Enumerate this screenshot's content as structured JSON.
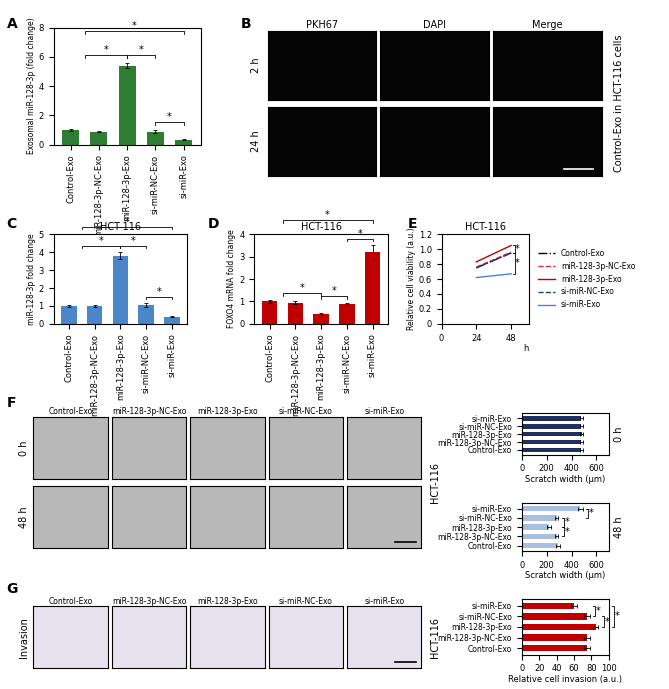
{
  "chart_data": [
    {
      "letter": "A",
      "type": "bar",
      "y_label": "Exosomal miR-128-3p (fold change)",
      "categories": [
        "Control-Exo",
        "miR-128-3p-NC-Exo",
        "miR-128-3p-Exo",
        "si-miR-NC-Exo",
        "si-miR-Exo"
      ],
      "values": [
        1.0,
        0.9,
        5.4,
        0.9,
        0.35
      ],
      "errors": [
        0.05,
        0.03,
        0.15,
        0.1,
        0.02
      ],
      "color": "#2e7d32",
      "ylim": [
        0,
        8
      ],
      "yticks": [
        0,
        2,
        4,
        6,
        8
      ],
      "significance": [
        {
          "from": [
            0,
            1
          ],
          "to": [
            2
          ],
          "label": "*"
        },
        {
          "from": [
            2
          ],
          "to": [
            3
          ],
          "label": "*"
        },
        {
          "from": [
            3
          ],
          "to": [
            4
          ],
          "label": "*"
        },
        {
          "from": [
            0,
            1
          ],
          "to": [
            4
          ],
          "label": "*"
        }
      ]
    },
    {
      "letter": "C",
      "type": "bar",
      "title": "HCT-116",
      "y_label": "miR-128-3p fold change",
      "categories": [
        "Control-Exo",
        "miR-128-3p-NC-Exo",
        "miR-128-3p-Exo",
        "si-miR-NC-Exo",
        "si-miR-Exo"
      ],
      "values": [
        1.0,
        1.0,
        3.8,
        1.05,
        0.4
      ],
      "errors": [
        0.04,
        0.04,
        0.2,
        0.1,
        0.03
      ],
      "color": "#4a86c8",
      "ylim": [
        0,
        5
      ],
      "yticks": [
        0,
        1,
        2,
        3,
        4,
        5
      ],
      "significance": [
        {
          "from": [
            0,
            1
          ],
          "to": [
            2
          ],
          "label": "*"
        },
        {
          "from": [
            2
          ],
          "to": [
            3
          ],
          "label": "*"
        },
        {
          "from": [
            3
          ],
          "to": [
            4
          ],
          "label": "*"
        },
        {
          "from": [
            0,
            1
          ],
          "to": [
            4
          ],
          "label": "*"
        }
      ]
    },
    {
      "letter": "D",
      "type": "bar",
      "title": "HCT-116",
      "y_label": "FOXO4 mRNA fold change",
      "categories": [
        "Control-Exo",
        "miR-128-3p-NC-Exo",
        "miR-128-3p-Exo",
        "si-miR-NC-Exo",
        "si-miR-Exo"
      ],
      "values": [
        1.0,
        0.95,
        0.45,
        0.9,
        3.2
      ],
      "errors": [
        0.08,
        0.05,
        0.04,
        0.05,
        0.3
      ],
      "color": "#c00000",
      "ylim": [
        0,
        4
      ],
      "yticks": [
        0,
        1,
        2,
        3,
        4
      ],
      "significance": [
        {
          "from": [
            0,
            1
          ],
          "to": [
            2
          ],
          "label": "*"
        },
        {
          "from": [
            2
          ],
          "to": [
            3
          ],
          "label": "*"
        },
        {
          "from": [
            3
          ],
          "to": [
            4
          ],
          "label": "*"
        },
        {
          "from": [
            0,
            1
          ],
          "to": [
            4
          ],
          "label": "*"
        }
      ]
    },
    {
      "letter": "E",
      "type": "line",
      "title": "HCT-116",
      "y_label": "Relative cell viability (a.u.)",
      "x_label": "h",
      "x": [
        24,
        48
      ],
      "series": [
        {
          "name": "Control-Exo",
          "color": "#000000",
          "line_style": "dashdot",
          "values": [
            0.75,
            0.95
          ]
        },
        {
          "name": "miR-128-3p-NC-Exo",
          "color": "#e03030",
          "line_style": "dashed",
          "values": [
            0.76,
            0.96
          ]
        },
        {
          "name": "miR-128-3p-Exo",
          "color": "#c00000",
          "line_style": "solid",
          "values": [
            0.83,
            1.05
          ]
        },
        {
          "name": "si-miR-NC-Exo",
          "color": "#1f3f7f",
          "line_style": "dashed",
          "values": [
            0.75,
            0.95
          ]
        },
        {
          "name": "si-miR-Exo",
          "color": "#4a86c8",
          "line_style": "solid",
          "values": [
            0.62,
            0.67
          ]
        }
      ],
      "xlim": [
        0,
        60
      ],
      "xticks": [
        0,
        24,
        48
      ],
      "ylim": [
        0,
        1.2
      ],
      "yticks": [
        0,
        0.2,
        0.4,
        0.6,
        0.8,
        1.0,
        1.2
      ],
      "legend": "right",
      "significance": [
        {
          "from": [
            2
          ],
          "to": [
            3
          ],
          "label": "*"
        },
        {
          "from": [
            3
          ],
          "to": [
            4
          ],
          "label": "*"
        }
      ]
    },
    {
      "letter": "F",
      "type": "bar",
      "orientation": "horizontal",
      "side_label": "0 h",
      "x_label": "Scratch width (μm)",
      "categories": [
        "Control-Exo",
        "miR-128-3p-NC-Exo",
        "miR-128-3p-Exo",
        "si-miR-NC-Exo",
        "si-miR-Exo"
      ],
      "values": [
        480,
        480,
        482,
        480,
        478
      ],
      "errors": [
        10,
        12,
        10,
        10,
        12
      ],
      "color": "#1f2f5f",
      "xlim": [
        0,
        700
      ],
      "xticks": [
        0,
        200,
        400,
        600
      ],
      "significance": []
    },
    {
      "letter": "F",
      "type": "bar",
      "orientation": "horizontal",
      "side_label": "48 h",
      "x_label": "Scratch width (μm)",
      "categories": [
        "Control-Exo",
        "miR-128-3p-NC-Exo",
        "miR-128-3p-Exo",
        "si-miR-NC-Exo",
        "si-miR-Exo"
      ],
      "values": [
        290,
        280,
        220,
        280,
        470
      ],
      "errors": [
        15,
        15,
        15,
        15,
        20
      ],
      "color": "#a9bfe0",
      "xlim": [
        0,
        700
      ],
      "xticks": [
        0,
        200,
        400,
        600
      ],
      "significance": [
        {
          "from": [
            4
          ],
          "to": [
            3
          ],
          "label": "*"
        },
        {
          "from": [
            3
          ],
          "to": [
            2
          ],
          "label": "*"
        },
        {
          "from": [
            2
          ],
          "to": [
            1
          ],
          "label": "*"
        }
      ]
    },
    {
      "letter": "G",
      "type": "bar",
      "orientation": "horizontal",
      "x_label": "Relative cell invasion (a.u.)",
      "categories": [
        "Control-Exo",
        "miR-128-3p-NC-Exo",
        "miR-128-3p-Exo",
        "si-miR-NC-Exo",
        "si-miR-Exo"
      ],
      "values": [
        75,
        75,
        85,
        75,
        60
      ],
      "errors": [
        3,
        3,
        3,
        3,
        3
      ],
      "color": "#c00000",
      "xlim": [
        0,
        100
      ],
      "xticks": [
        0,
        20,
        40,
        60,
        80,
        100
      ],
      "significance": [
        {
          "from": [
            4
          ],
          "to": [
            3
          ],
          "label": "*"
        },
        {
          "from": [
            3
          ],
          "to": [
            2
          ],
          "label": "*"
        },
        {
          "from": [
            4
          ],
          "to": [
            2
          ],
          "label": "*"
        }
      ]
    }
  ],
  "image_panels": [
    {
      "letter": "B",
      "columns": [
        "PKH67",
        "DAPI",
        "Merge"
      ],
      "rows": [
        "2 h",
        "24 h"
      ],
      "side_label": "Control-Exo in HCT-116 cells"
    },
    {
      "letter": "F",
      "columns": [
        "Control-Exo",
        "miR-128-3p-NC-Exo",
        "miR-128-3p-Exo",
        "si-miR-NC-Exo",
        "si-miR-Exo"
      ],
      "rows": [
        "0 h",
        "48 h"
      ],
      "side_label": "HCT-116"
    },
    {
      "letter": "G",
      "columns": [
        "Control-Exo",
        "miR-128-3p-NC-Exo",
        "miR-128-3p-Exo",
        "si-miR-NC-Exo",
        "si-miR-Exo"
      ],
      "rows": [
        "Invasion"
      ],
      "side_label": "HCT-116"
    }
  ]
}
